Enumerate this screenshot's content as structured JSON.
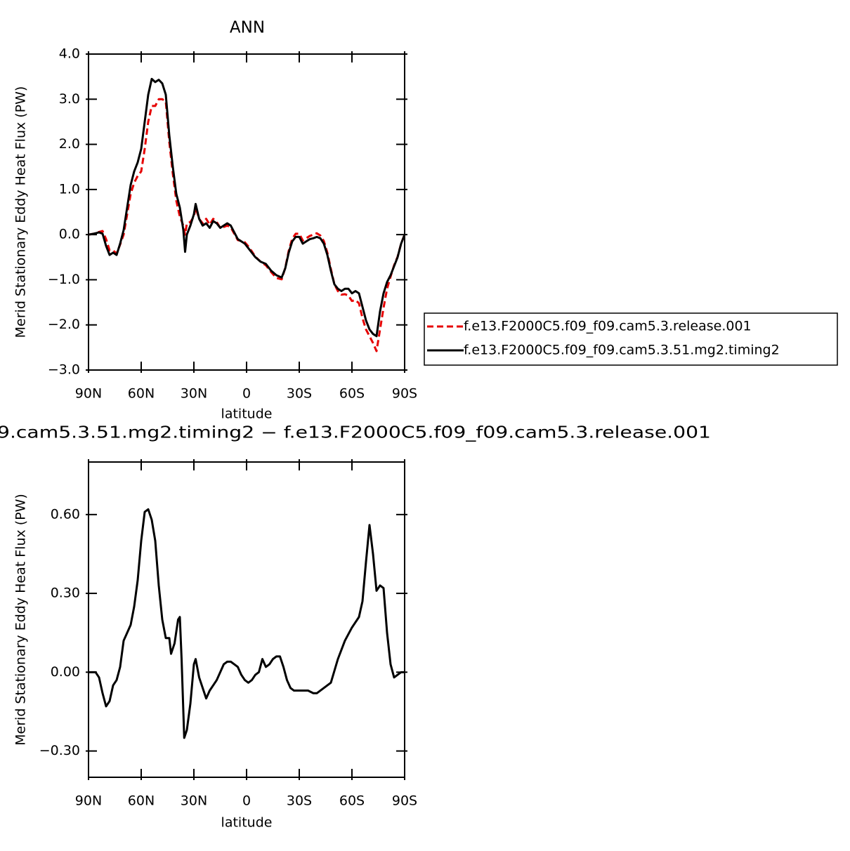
{
  "chart_data": [
    {
      "type": "line",
      "title": "ANN",
      "xlabel": "latitude",
      "ylabel": "Merid Stationary Eddy Heat Flux (PW)",
      "x": [
        90,
        87,
        84,
        82,
        80,
        78,
        76,
        74,
        72,
        70,
        68,
        66,
        64,
        62,
        60,
        58,
        56,
        54,
        52,
        50,
        48,
        46,
        44,
        42,
        40,
        38,
        36,
        35,
        34,
        32,
        30,
        29,
        27,
        25,
        23,
        21,
        19,
        17,
        15,
        13,
        11,
        9,
        7,
        5,
        3,
        1,
        -1,
        -3,
        -5,
        -8,
        -11,
        -14,
        -17,
        -20,
        -22,
        -24,
        -26,
        -28,
        -30,
        -32,
        -34,
        -36,
        -38,
        -40,
        -42,
        -44,
        -46,
        -48,
        -50,
        -52,
        -54,
        -56,
        -58,
        -60,
        -62,
        -64,
        -66,
        -68,
        -70,
        -72,
        -74,
        -76,
        -78,
        -80,
        -82,
        -84,
        -86,
        -88,
        -90
      ],
      "series": [
        {
          "name": "f.e13.F2000C5.f09_f09.cam5.3.release.001",
          "color": "#e60000",
          "line_style": "dashed",
          "values": [
            0,
            0.02,
            0.06,
            0.08,
            -0.1,
            -0.35,
            -0.35,
            -0.42,
            -0.22,
            0,
            0.45,
            0.9,
            1.15,
            1.3,
            1.4,
            1.9,
            2.5,
            2.85,
            2.85,
            3.0,
            3.0,
            2.95,
            2.05,
            1.35,
            0.75,
            0.4,
            0.2,
            0,
            0.25,
            0.28,
            0.4,
            0.6,
            0.35,
            0.25,
            0.35,
            0.22,
            0.35,
            0.28,
            0.15,
            0.17,
            0.2,
            0.16,
            0.02,
            -0.12,
            -0.14,
            -0.17,
            -0.26,
            -0.37,
            -0.49,
            -0.6,
            -0.68,
            -0.83,
            -0.96,
            -0.99,
            -0.74,
            -0.36,
            -0.09,
            0.02,
            0.02,
            -0.13,
            -0.08,
            -0.03,
            0,
            0.03,
            -0.02,
            -0.14,
            -0.4,
            -0.76,
            -1.1,
            -1.25,
            -1.33,
            -1.32,
            -1.35,
            -1.47,
            -1.45,
            -1.52,
            -1.85,
            -2.1,
            -2.25,
            -2.4,
            -2.58,
            -2.1,
            -1.62,
            -1.2,
            -0.93,
            -0.68,
            -0.49,
            -0.2,
            0
          ]
        },
        {
          "name": "f.e13.F2000C5.f09_f09.cam5.3.51.mg2.timing2",
          "color": "#000000",
          "line_style": "solid",
          "values": [
            0,
            0.02,
            0.05,
            0.02,
            -0.25,
            -0.45,
            -0.4,
            -0.45,
            -0.2,
            0.1,
            0.6,
            1.1,
            1.4,
            1.6,
            1.9,
            2.5,
            3.1,
            3.45,
            3.38,
            3.43,
            3.35,
            3.1,
            2.2,
            1.5,
            0.9,
            0.6,
            0.1,
            -0.38,
            0,
            0.2,
            0.45,
            0.68,
            0.35,
            0.2,
            0.25,
            0.15,
            0.3,
            0.25,
            0.15,
            0.2,
            0.25,
            0.2,
            0.05,
            -0.1,
            -0.15,
            -0.2,
            -0.3,
            -0.4,
            -0.5,
            -0.6,
            -0.65,
            -0.8,
            -0.9,
            -0.95,
            -0.75,
            -0.4,
            -0.15,
            -0.05,
            -0.05,
            -0.2,
            -0.15,
            -0.1,
            -0.08,
            -0.05,
            -0.08,
            -0.2,
            -0.45,
            -0.8,
            -1.1,
            -1.2,
            -1.25,
            -1.2,
            -1.2,
            -1.3,
            -1.25,
            -1.3,
            -1.6,
            -1.9,
            -2.1,
            -2.2,
            -2.25,
            -1.7,
            -1.3,
            -1.05,
            -0.9,
            -0.7,
            -0.5,
            -0.2,
            0
          ]
        }
      ],
      "xlim": [
        90,
        -90
      ],
      "xticks": [
        {
          "value": 90,
          "label": "90N"
        },
        {
          "value": 60,
          "label": "60N"
        },
        {
          "value": 30,
          "label": "30N"
        },
        0,
        {
          "value": -30,
          "label": "30S"
        },
        {
          "value": -60,
          "label": "60S"
        },
        {
          "value": -90,
          "label": "90S"
        }
      ],
      "ylim": [
        -3,
        4
      ],
      "yticks": [
        {
          "value": 4,
          "label": "4.0"
        },
        {
          "value": 3,
          "label": "3.0"
        },
        {
          "value": 2,
          "label": "2.0"
        },
        {
          "value": 1,
          "label": "1.0"
        },
        {
          "value": 0,
          "label": "0.0"
        },
        {
          "value": -1,
          "label": "−1.0"
        },
        {
          "value": -2,
          "label": "−2.0"
        },
        {
          "value": -3,
          "label": "−3.0"
        }
      ],
      "legend": "right"
    },
    {
      "type": "line",
      "title": "9.cam5.3.51.mg2.timing2 − f.e13.F2000C5.f09_f09.cam5.3.release.001",
      "xlabel": "latitude",
      "ylabel": "Merid Stationary Eddy Heat Flux (PW)",
      "x": [
        90,
        86,
        84,
        82,
        80,
        78,
        76,
        74,
        72,
        70,
        68,
        66,
        64,
        62,
        60,
        58,
        56,
        54,
        52,
        50,
        48,
        46,
        44,
        43,
        41,
        39,
        38,
        37,
        35.5,
        34,
        32,
        30,
        29,
        27,
        25,
        23,
        21,
        19,
        17,
        15,
        13,
        11,
        9,
        7,
        5,
        3,
        1,
        -1,
        -3,
        -5,
        -7,
        -9,
        -11,
        -13,
        -15,
        -17,
        -19,
        -21,
        -23,
        -25,
        -27,
        -31,
        -35,
        -38,
        -40,
        -44,
        -48,
        -52,
        -56,
        -60,
        -64,
        -66,
        -68,
        -70,
        -72,
        -74,
        -76,
        -78,
        -80,
        -82,
        -84,
        -86,
        -88,
        -90
      ],
      "values": [
        0,
        0,
        -0.02,
        -0.08,
        -0.13,
        -0.11,
        -0.05,
        -0.03,
        0.02,
        0.12,
        0.15,
        0.18,
        0.25,
        0.35,
        0.5,
        0.61,
        0.62,
        0.58,
        0.5,
        0.33,
        0.2,
        0.13,
        0.13,
        0.07,
        0.11,
        0.2,
        0.21,
        0.05,
        -0.25,
        -0.22,
        -0.12,
        0.03,
        0.05,
        -0.02,
        -0.06,
        -0.1,
        -0.07,
        -0.05,
        -0.03,
        0,
        0.03,
        0.04,
        0.04,
        0.03,
        0.02,
        -0.01,
        -0.03,
        -0.04,
        -0.03,
        -0.01,
        0,
        0.05,
        0.02,
        0.03,
        0.05,
        0.06,
        0.06,
        0.02,
        -0.03,
        -0.06,
        -0.07,
        -0.07,
        -0.07,
        -0.08,
        -0.08,
        -0.06,
        -0.04,
        0.05,
        0.12,
        0.17,
        0.21,
        0.27,
        0.42,
        0.56,
        0.45,
        0.31,
        0.33,
        0.32,
        0.15,
        0.03,
        -0.02,
        -0.01,
        0,
        0
      ],
      "color": "#000000",
      "xlim": [
        90,
        -90
      ],
      "xticks": [
        {
          "value": 90,
          "label": "90N"
        },
        {
          "value": 60,
          "label": "60N"
        },
        {
          "value": 30,
          "label": "30N"
        },
        0,
        {
          "value": -30,
          "label": "30S"
        },
        {
          "value": -60,
          "label": "60S"
        },
        {
          "value": -90,
          "label": "90S"
        }
      ],
      "ylim": [
        -0.4,
        0.8
      ],
      "yticks": [
        {
          "value": 0.6,
          "label": "0.60"
        },
        {
          "value": 0.3,
          "label": "0.30"
        },
        {
          "value": 0,
          "label": "0.00"
        },
        {
          "value": -0.3,
          "label": "−0.30"
        }
      ]
    }
  ]
}
